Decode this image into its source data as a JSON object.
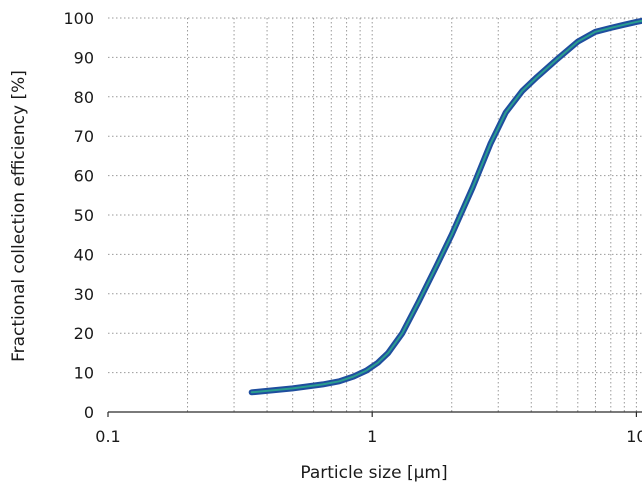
{
  "chart_data": {
    "type": "line",
    "title": "",
    "xlabel": "Particle size [µm]",
    "ylabel": "Fractional collection efficiency [%]",
    "xscale": "log",
    "xlim": [
      0.1,
      10.5
    ],
    "ylim": [
      0,
      100
    ],
    "x_ticks": [
      0.1,
      1,
      10
    ],
    "x_tick_labels": [
      "0.1",
      "1",
      "10"
    ],
    "y_ticks": [
      0,
      10,
      20,
      30,
      40,
      50,
      60,
      70,
      80,
      90,
      100
    ],
    "y_tick_labels": [
      "0",
      "10",
      "20",
      "30",
      "40",
      "50",
      "60",
      "70",
      "80",
      "90",
      "100"
    ],
    "grid": "dotted, major and minor",
    "series": [
      {
        "line_color": "#1f4e9e",
        "inner_color": "#2a9d8f",
        "x": [
          0.35,
          0.5,
          0.65,
          0.75,
          0.85,
          0.95,
          1.05,
          1.15,
          1.3,
          1.5,
          1.75,
          2.0,
          2.4,
          2.8,
          3.2,
          3.7,
          4.2,
          5.0,
          6.0,
          7.0,
          8.0,
          9.0,
          10.0,
          10.5
        ],
        "y": [
          5,
          6,
          7,
          7.8,
          9,
          10.5,
          12.5,
          15,
          20,
          28,
          37,
          45,
          57,
          68,
          76,
          81.5,
          85,
          89.5,
          94,
          96.5,
          97.5,
          98.3,
          99,
          99.3
        ]
      }
    ]
  }
}
